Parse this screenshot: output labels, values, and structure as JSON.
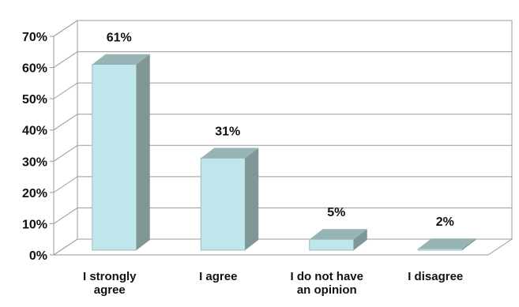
{
  "chart_data": {
    "type": "bar",
    "categories": [
      [
        "I strongly",
        "agree"
      ],
      [
        "I agree"
      ],
      [
        "I do not have",
        "an opinion"
      ],
      [
        "I disagree"
      ]
    ],
    "values": [
      61,
      31,
      5,
      2
    ],
    "data_labels": [
      "61%",
      "31%",
      "5%",
      "2%"
    ],
    "y_ticks": [
      "0%",
      "10%",
      "20%",
      "30%",
      "40%",
      "50%",
      "60%",
      "70%"
    ],
    "ylim": [
      0,
      70
    ],
    "grid": true,
    "style": "3d-column",
    "colors": {
      "bar_front": "#bfe6ea",
      "bar_side": "#7f9797",
      "bar_top": "#97b3b4",
      "grid": "#9a9a9a",
      "wall": "#ffffff",
      "text": "#111111"
    }
  }
}
